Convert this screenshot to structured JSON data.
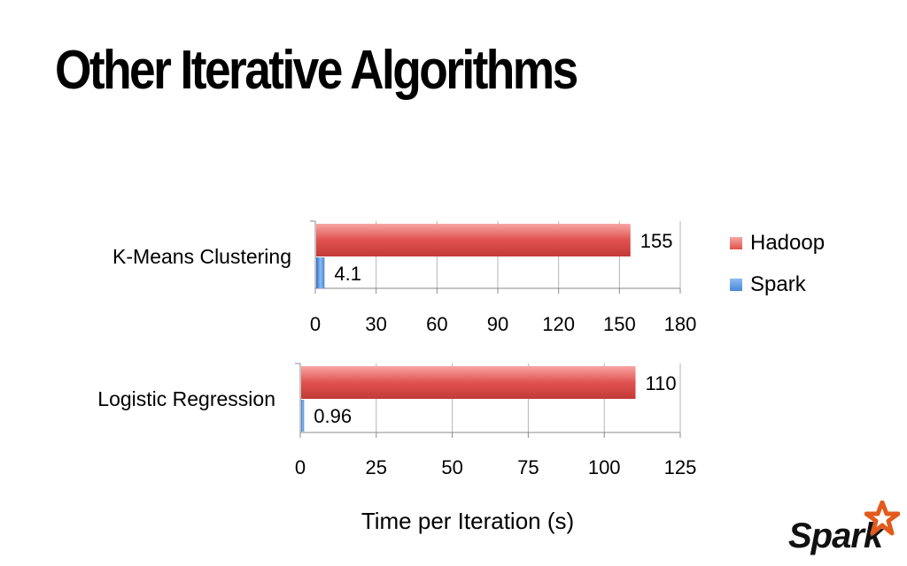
{
  "slide": {
    "title": "Other Iterative Algorithms"
  },
  "colors": {
    "hadoop": "#e0524f",
    "spark": "#4a86d4",
    "grid": "#b5b5b5",
    "logo_star": "#e25a1c"
  },
  "legend": [
    {
      "label": "Hadoop",
      "color": "#e0524f"
    },
    {
      "label": "Spark",
      "color": "#4a86d4"
    }
  ],
  "chart_data": [
    {
      "type": "bar",
      "orientation": "horizontal",
      "category": "K-Means Clustering",
      "series": [
        {
          "name": "Hadoop",
          "value": 155,
          "label": "155"
        },
        {
          "name": "Spark",
          "value": 4.1,
          "label": "4.1"
        }
      ],
      "xlim": [
        0,
        180
      ],
      "ticks": [
        0,
        30,
        60,
        90,
        120,
        150,
        180
      ],
      "grid": true
    },
    {
      "type": "bar",
      "orientation": "horizontal",
      "category": "Logistic Regression",
      "series": [
        {
          "name": "Hadoop",
          "value": 110,
          "label": "110"
        },
        {
          "name": "Spark",
          "value": 0.96,
          "label": "0.96"
        }
      ],
      "xlim": [
        0,
        125
      ],
      "ticks": [
        0,
        25,
        50,
        75,
        100,
        125
      ],
      "grid": true
    }
  ],
  "xlabel": "Time per Iteration (s)",
  "logo": {
    "text": "Spark"
  }
}
